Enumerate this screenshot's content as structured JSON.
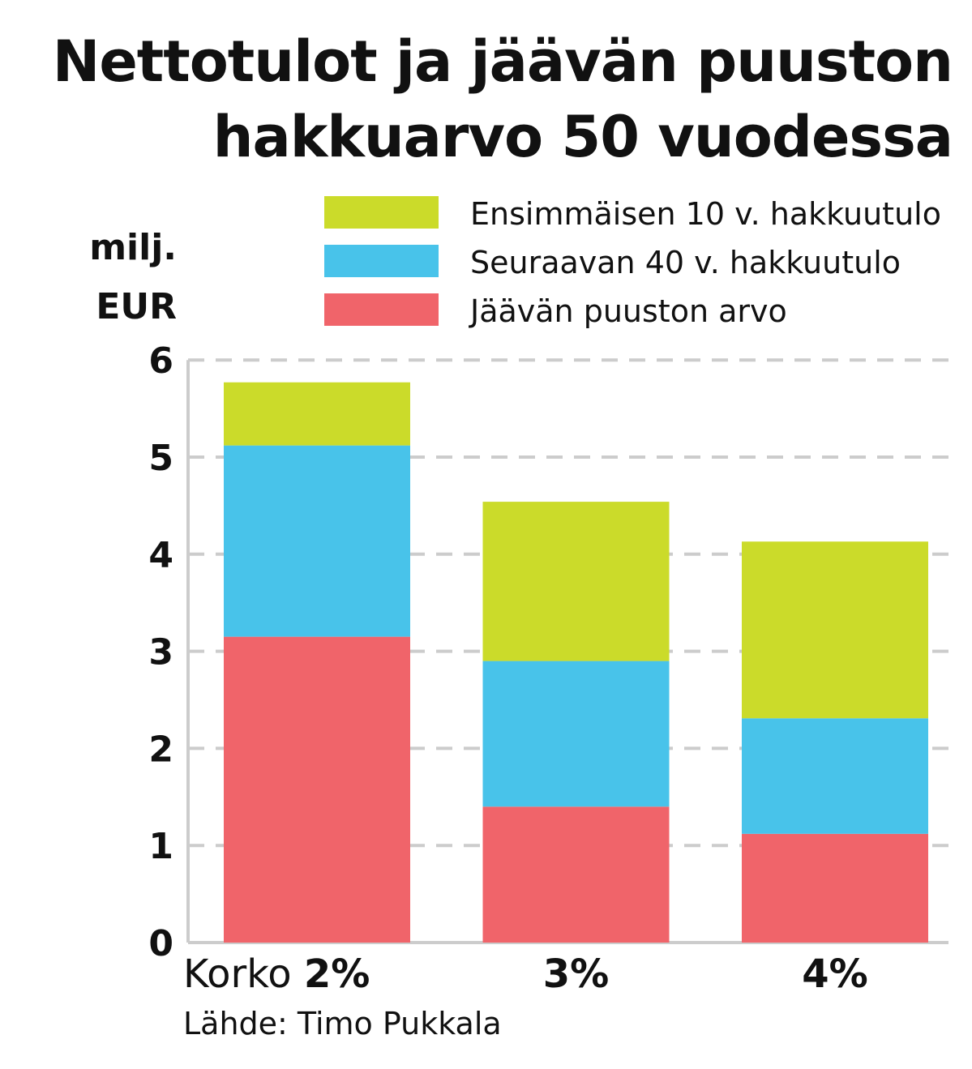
{
  "chart_data": {
    "type": "bar",
    "stacked": true,
    "title_line1": "Nettotulot ja jäävän puuston",
    "title_line2": "hakkuarvo 50 vuodessa",
    "ylabel_line1": "milj.",
    "ylabel_line2": "EUR",
    "xlabel_prefix": "Korko",
    "categories": [
      "2%",
      "3%",
      "4%"
    ],
    "ylim": [
      0,
      6
    ],
    "yticks": [
      "0",
      "1",
      "2",
      "3",
      "4",
      "5",
      "6"
    ],
    "grid": true,
    "legend_position": "top-right",
    "series": [
      {
        "name": "Jäävän puuston arvo",
        "color": "#f0646a",
        "values": [
          3.15,
          1.4,
          1.12
        ]
      },
      {
        "name": "Seuraavan 40 v. hakkuutulo",
        "color": "#48c3ea",
        "values": [
          1.97,
          1.5,
          1.19
        ]
      },
      {
        "name": "Ensimmäisen 10 v. hakkuutulo",
        "color": "#cbdb2a",
        "values": [
          0.65,
          1.64,
          1.82
        ]
      }
    ],
    "source": "Lähde: Timo Pukkala"
  }
}
